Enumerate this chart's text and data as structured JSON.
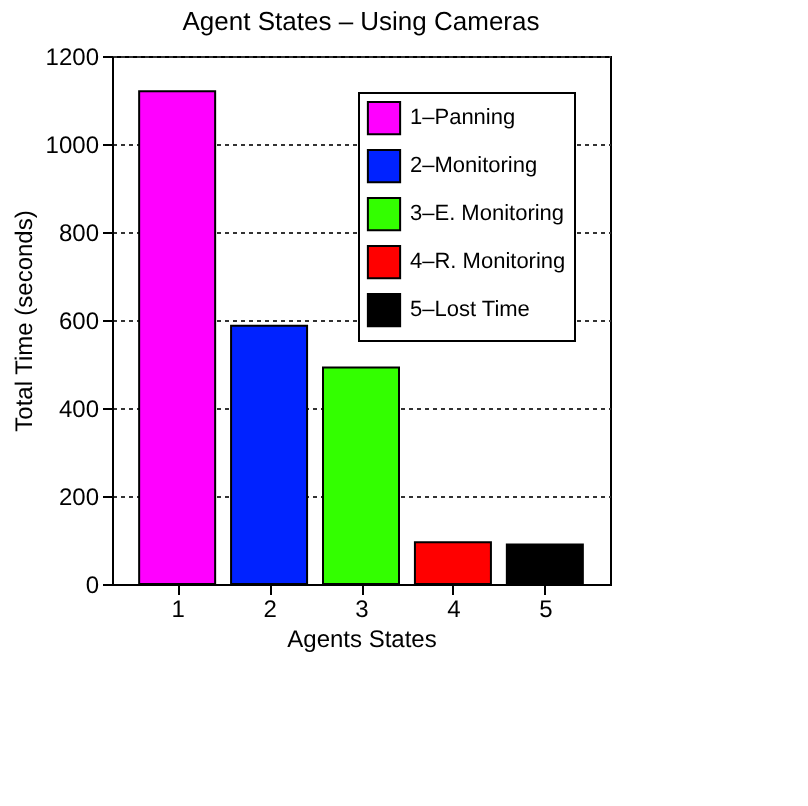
{
  "chart_data": {
    "type": "bar",
    "title": "Agent States – Using Cameras",
    "xlabel": "Agents States",
    "ylabel": "Total Time (seconds)",
    "categories": [
      "1",
      "2",
      "3",
      "4",
      "5"
    ],
    "series": [
      {
        "name": "1–Panning",
        "color": "#ff00ff",
        "values": [
          1120,
          null,
          null,
          null,
          null
        ]
      },
      {
        "name": "2–Monitoring",
        "color": "#0022ff",
        "values": [
          null,
          587,
          null,
          null,
          null
        ]
      },
      {
        "name": "3–E. Monitoring",
        "color": "#33ff00",
        "values": [
          null,
          null,
          492,
          null,
          null
        ]
      },
      {
        "name": "4–R. Monitoring",
        "color": "#ff0000",
        "values": [
          null,
          null,
          null,
          95,
          null
        ]
      },
      {
        "name": "5–Lost Time",
        "color": "#000000",
        "values": [
          null,
          null,
          null,
          null,
          90
        ]
      }
    ],
    "ylim": [
      0,
      1200
    ],
    "yticks": [
      0,
      200,
      400,
      600,
      800,
      1000,
      1200
    ],
    "grid": "y",
    "legend": "top right"
  }
}
